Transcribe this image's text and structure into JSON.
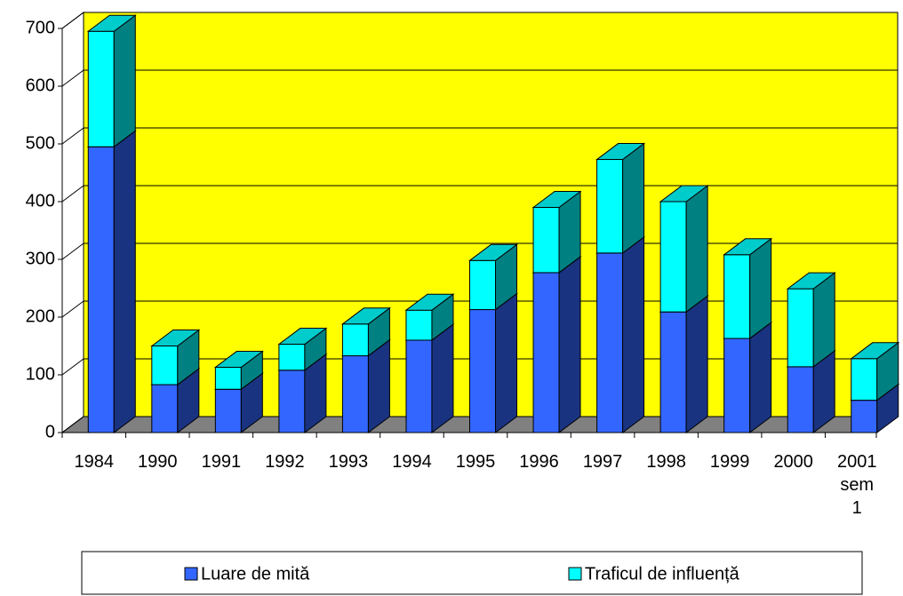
{
  "chart_data": {
    "type": "bar",
    "stacked": true,
    "categories": [
      "1984",
      "1990",
      "1991",
      "1992",
      "1993",
      "1994",
      "1995",
      "1996",
      "1997",
      "1998",
      "1999",
      "2000",
      "2001 sem 1"
    ],
    "series": [
      {
        "name": "Luare de mită",
        "color": "#3366ff",
        "values": [
          495,
          83,
          75,
          108,
          133,
          160,
          213,
          277,
          311,
          209,
          163,
          114,
          56
        ]
      },
      {
        "name": "Traficul de influență",
        "color": "#00ffff",
        "values": [
          200,
          67,
          38,
          45,
          55,
          52,
          85,
          113,
          162,
          191,
          145,
          135,
          72
        ]
      }
    ],
    "ylim": [
      0,
      700
    ],
    "yticks": [
      0,
      100,
      200,
      300,
      400,
      500,
      600,
      700
    ],
    "grid": true,
    "legend": "bottom"
  }
}
